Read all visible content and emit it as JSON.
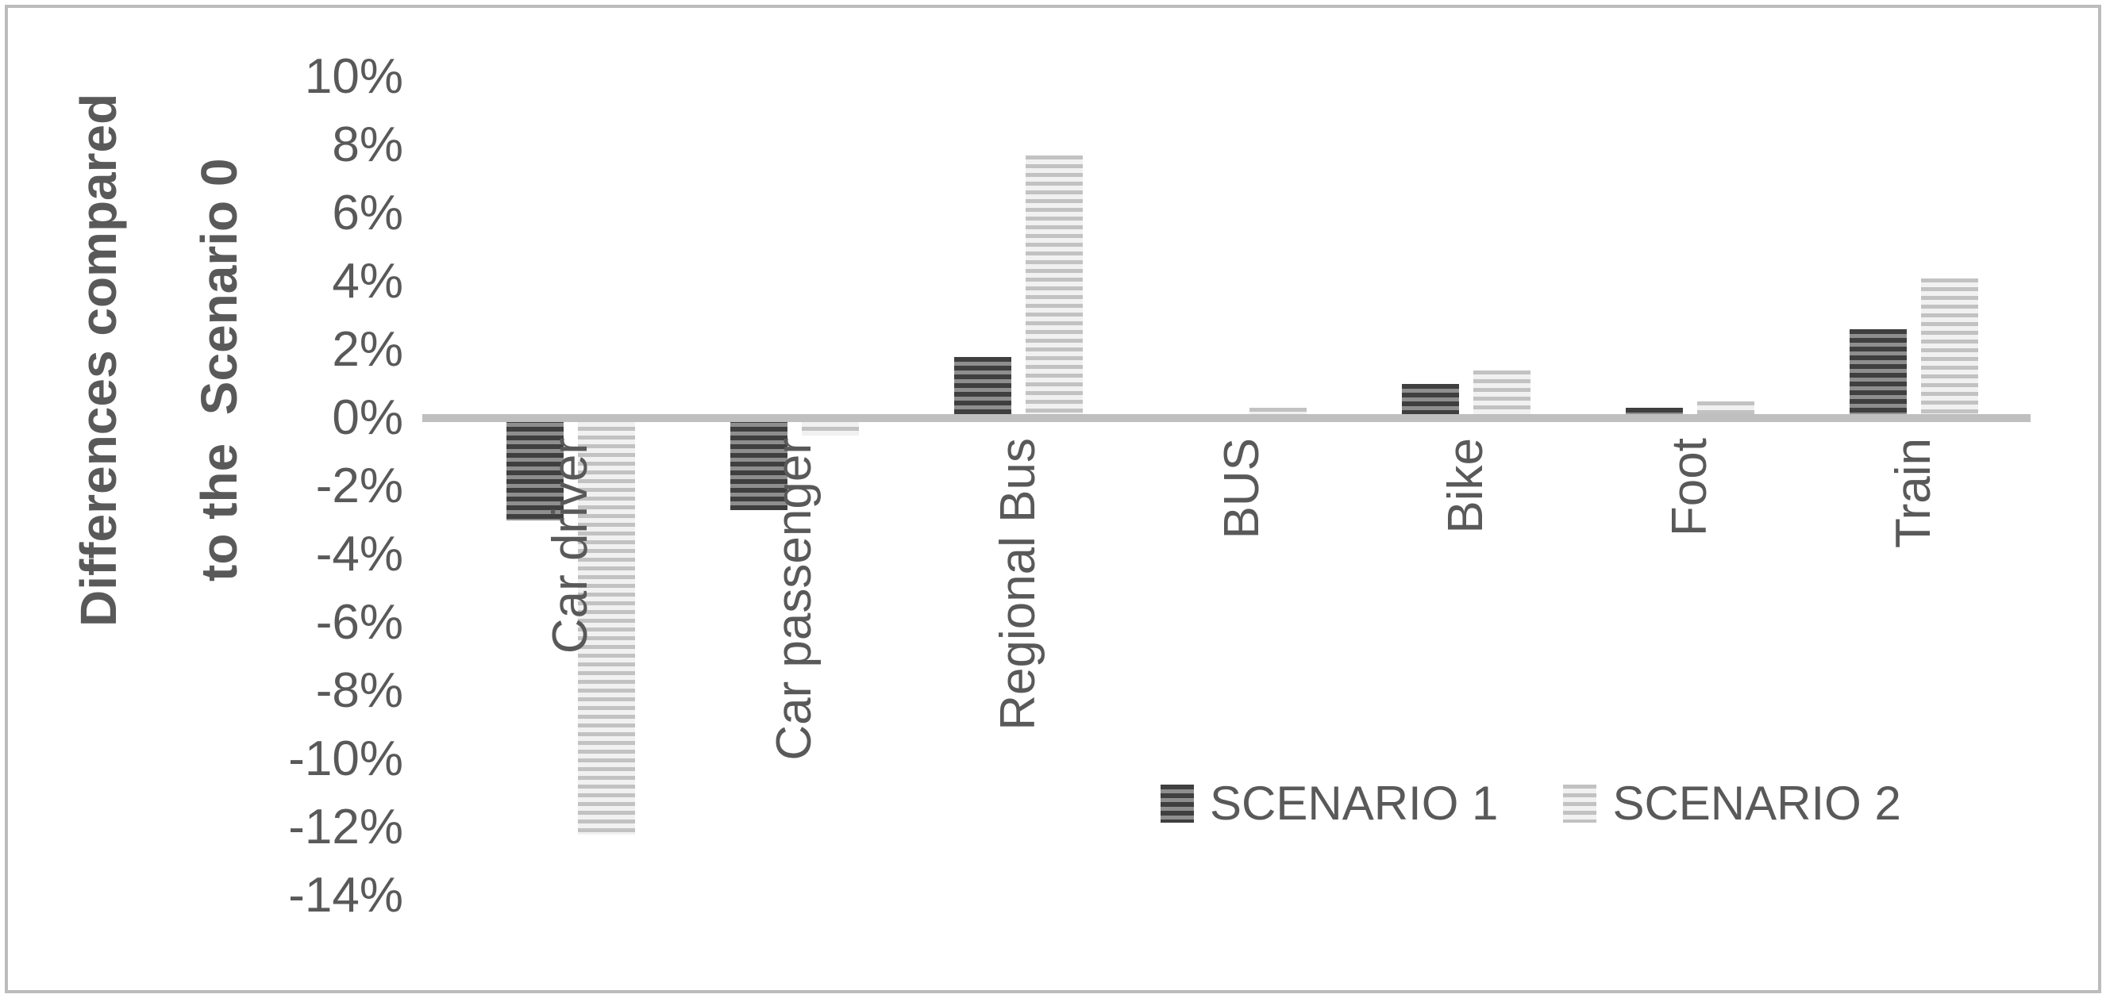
{
  "y_axis_title": {
    "line1": "Differences compared",
    "line2": "to the  Scenario 0"
  },
  "chart_data": {
    "type": "bar",
    "title": "",
    "ylabel": "Differences compared to the  Scenario 0",
    "xlabel": "",
    "categories": [
      "Car driver",
      "Car passenger",
      "Regional Bus",
      "BUS",
      "Bike",
      "Foot",
      "Train"
    ],
    "series": [
      {
        "name": "SCENARIO 1",
        "values": [
          -3.0,
          -2.7,
          1.8,
          0.0,
          1.0,
          0.3,
          2.6
        ],
        "pattern": "dark-gray-horizontal-hatch",
        "stripe_dark": "#3f3f3f",
        "stripe_light": "#8e8e8e"
      },
      {
        "name": "SCENARIO 2",
        "values": [
          -12.2,
          -0.5,
          7.7,
          0.3,
          1.4,
          0.5,
          4.1
        ],
        "pattern": "light-gray-horizontal-hatch",
        "stripe_dark": "#c2c2c2",
        "stripe_light": "#f1f1f1"
      }
    ],
    "y_axis": {
      "unit": "%",
      "min": -14,
      "max": 10,
      "step": 2,
      "tick_labels": [
        "10%",
        "8%",
        "6%",
        "4%",
        "2%",
        "0%",
        "-2%",
        "-4%",
        "-6%",
        "-8%",
        "-10%",
        "-12%",
        "-14%"
      ],
      "tick_values": [
        10,
        8,
        6,
        4,
        2,
        0,
        -2,
        -4,
        -6,
        -8,
        -10,
        -12,
        -14
      ],
      "gridlines": false
    },
    "legend": {
      "position": "inside-bottom-right",
      "entries": [
        "SCENARIO 1",
        "SCENARIO 2"
      ]
    },
    "axis_color": "#bfbfbf",
    "border_color": "#bcbcbc",
    "text_color": "#595959",
    "background_color": "#ffffff"
  }
}
